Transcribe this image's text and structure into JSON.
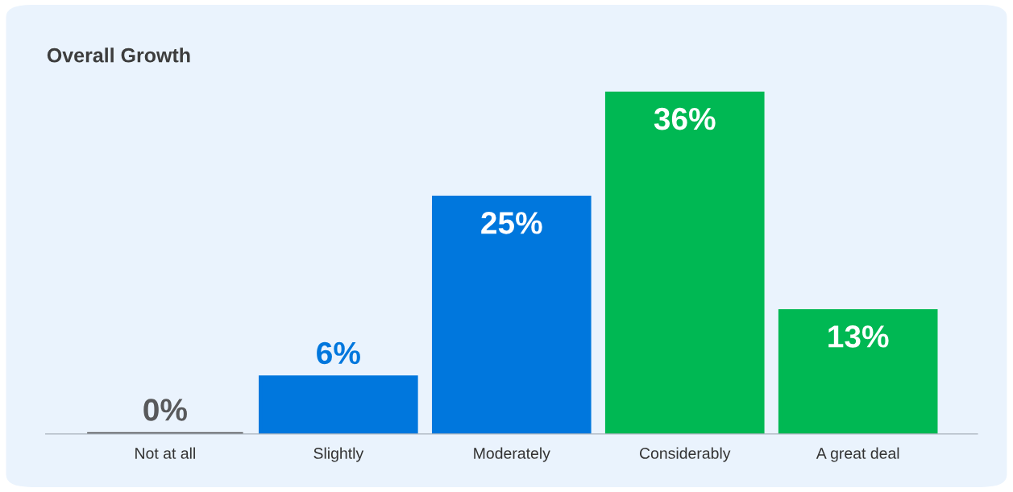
{
  "chart_data": {
    "type": "bar",
    "title": "Overall Growth",
    "categories": [
      "Not at all",
      "Slightly",
      "Moderately",
      "Considerably",
      "A great deal"
    ],
    "values": [
      0,
      6,
      25,
      36,
      13
    ],
    "colors": [
      "#58595b",
      "#0077dd",
      "#0077dd",
      "#00b853",
      "#00b853"
    ],
    "value_labels": [
      "0%",
      "6%",
      "25%",
      "36%",
      "13%"
    ],
    "grid": false,
    "legend": false
  }
}
